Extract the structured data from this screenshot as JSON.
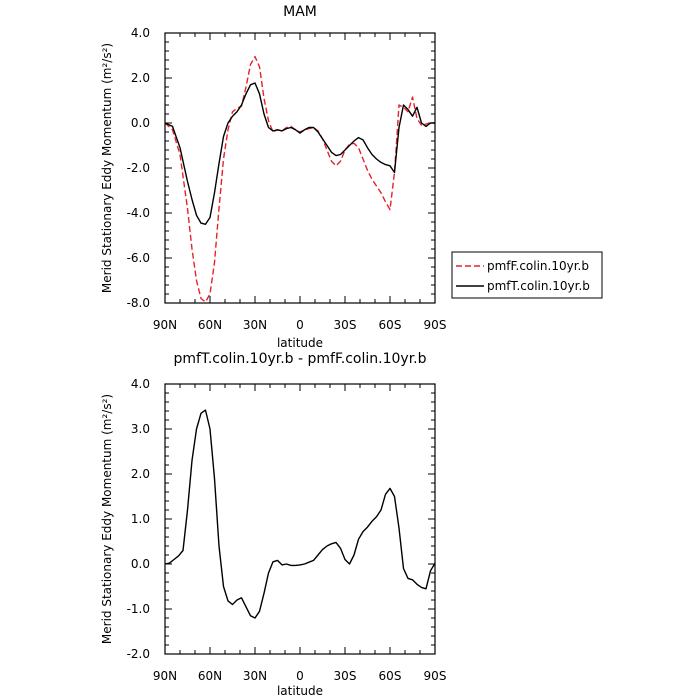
{
  "chart_data": [
    {
      "type": "line",
      "title": "MAM",
      "xlabel": "latitude",
      "ylabel": "Merid Stationary Eddy Momentum (m²/s²)",
      "xlim": [
        90,
        -90
      ],
      "ylim": [
        -8,
        4
      ],
      "x_ticks": [
        90,
        60,
        30,
        0,
        -30,
        -60,
        -90
      ],
      "x_tick_labels": [
        "90N",
        "60N",
        "30N",
        "0",
        "30S",
        "60S",
        "90S"
      ],
      "y_ticks": [
        -8,
        -6,
        -4,
        -2,
        0,
        2,
        4
      ],
      "y_tick_labels": [
        "-8.0",
        "-6.0",
        "-4.0",
        "-2.0",
        "0.0",
        "2.0",
        "4.0"
      ],
      "legend_position": "outside-right",
      "series": [
        {
          "name": "pmfF.colin.10yr.b",
          "color": "#e8202a",
          "dash": "dashed",
          "x": [
            90,
            85,
            80,
            75,
            72,
            69,
            66,
            63,
            60,
            57,
            54,
            51,
            48,
            45,
            42,
            39,
            36,
            33,
            30,
            27,
            24,
            21,
            18,
            15,
            12,
            9,
            6,
            3,
            0,
            -3,
            -6,
            -9,
            -12,
            -15,
            -18,
            -21,
            -24,
            -27,
            -30,
            -33,
            -36,
            -39,
            -42,
            -45,
            -48,
            -51,
            -54,
            -57,
            -60,
            -63,
            -66,
            -69,
            -72,
            -75,
            -78,
            -81,
            -84,
            -87,
            -90
          ],
          "y": [
            0,
            -0.3,
            -1.4,
            -3.8,
            -5.6,
            -7,
            -7.8,
            -7.95,
            -7.6,
            -6.2,
            -3.8,
            -1.6,
            -0.3,
            0.5,
            0.65,
            0.75,
            1.6,
            2.6,
            2.95,
            2.5,
            1.1,
            0.1,
            -0.4,
            -0.3,
            -0.35,
            -0.2,
            -0.15,
            -0.3,
            -0.4,
            -0.3,
            -0.25,
            -0.2,
            -0.35,
            -0.7,
            -1.2,
            -1.7,
            -1.9,
            -1.7,
            -1.2,
            -0.95,
            -0.9,
            -1.1,
            -1.6,
            -2.1,
            -2.5,
            -2.8,
            -3.1,
            -3.5,
            -3.85,
            -2.2,
            0.8,
            0.7,
            0.5,
            1.15,
            0.2,
            -0.1,
            -0.05,
            0,
            0
          ]
        },
        {
          "name": "pmfT.colin.10yr.b",
          "color": "#000000",
          "dash": "solid",
          "x": [
            90,
            85,
            80,
            75,
            72,
            69,
            66,
            63,
            60,
            57,
            54,
            51,
            48,
            45,
            42,
            39,
            36,
            33,
            30,
            27,
            24,
            21,
            18,
            15,
            12,
            9,
            6,
            3,
            0,
            -3,
            -6,
            -9,
            -12,
            -15,
            -18,
            -21,
            -24,
            -27,
            -30,
            -33,
            -36,
            -39,
            -42,
            -45,
            -48,
            -51,
            -54,
            -57,
            -60,
            -63,
            -66,
            -69,
            -72,
            -75,
            -78,
            -81,
            -84,
            -87,
            -90
          ],
          "y": [
            0,
            -0.15,
            -1.1,
            -2.6,
            -3.4,
            -4.1,
            -4.45,
            -4.5,
            -4.2,
            -3.1,
            -1.8,
            -0.6,
            0,
            0.3,
            0.5,
            0.8,
            1.3,
            1.7,
            1.78,
            1.3,
            0.4,
            -0.2,
            -0.35,
            -0.3,
            -0.35,
            -0.25,
            -0.2,
            -0.3,
            -0.45,
            -0.3,
            -0.2,
            -0.2,
            -0.4,
            -0.7,
            -1.0,
            -1.3,
            -1.45,
            -1.4,
            -1.2,
            -1.0,
            -0.8,
            -0.65,
            -0.75,
            -1.1,
            -1.4,
            -1.6,
            -1.75,
            -1.85,
            -1.9,
            -2.2,
            -0.2,
            0.8,
            0.6,
            0.3,
            0.7,
            0,
            -0.15,
            0,
            0
          ]
        }
      ]
    },
    {
      "type": "line",
      "title": "pmfT.colin.10yr.b - pmfF.colin.10yr.b",
      "xlabel": "latitude",
      "ylabel": "Merid Stationary Eddy Momentum (m²/s²)",
      "xlim": [
        90,
        -90
      ],
      "ylim": [
        -2,
        4
      ],
      "x_ticks": [
        90,
        60,
        30,
        0,
        -30,
        -60,
        -90
      ],
      "x_tick_labels": [
        "90N",
        "60N",
        "30N",
        "0",
        "30S",
        "60S",
        "90S"
      ],
      "y_ticks": [
        -2,
        -1,
        0,
        1,
        2,
        3,
        4
      ],
      "y_tick_labels": [
        "-2.0",
        "-1.0",
        "0.0",
        "1.0",
        "2.0",
        "3.0",
        "4.0"
      ],
      "series": [
        {
          "color": "#000000",
          "dash": "solid",
          "x": [
            90,
            87,
            84,
            81,
            78,
            75,
            72,
            69,
            66,
            63,
            60,
            57,
            54,
            51,
            48,
            45,
            42,
            39,
            36,
            33,
            30,
            27,
            24,
            21,
            18,
            15,
            12,
            9,
            6,
            3,
            0,
            -3,
            -6,
            -9,
            -12,
            -15,
            -18,
            -21,
            -24,
            -27,
            -30,
            -33,
            -36,
            -39,
            -42,
            -45,
            -48,
            -51,
            -54,
            -57,
            -60,
            -63,
            -66,
            -69,
            -72,
            -75,
            -78,
            -81,
            -84,
            -87,
            -90
          ],
          "y": [
            0,
            0.02,
            0.1,
            0.18,
            0.3,
            1.2,
            2.3,
            3.0,
            3.35,
            3.42,
            3.0,
            1.9,
            0.4,
            -0.5,
            -0.82,
            -0.9,
            -0.8,
            -0.75,
            -0.95,
            -1.15,
            -1.2,
            -1.05,
            -0.65,
            -0.2,
            0.05,
            0.08,
            -0.02,
            0.0,
            -0.03,
            -0.03,
            -0.02,
            0.0,
            0.04,
            0.08,
            0.2,
            0.32,
            0.4,
            0.45,
            0.48,
            0.35,
            0.1,
            0.0,
            0.2,
            0.55,
            0.72,
            0.82,
            0.95,
            1.05,
            1.2,
            1.55,
            1.68,
            1.5,
            0.8,
            -0.1,
            -0.32,
            -0.35,
            -0.45,
            -0.52,
            -0.55,
            -0.15,
            0.02
          ]
        }
      ]
    }
  ]
}
